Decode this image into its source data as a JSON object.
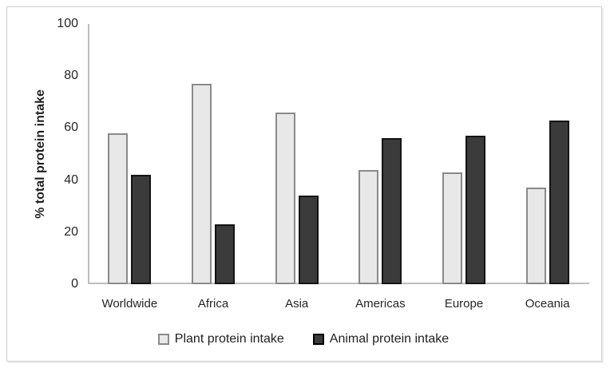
{
  "chart_data": {
    "type": "bar",
    "title": "",
    "categories": [
      "Worldwide",
      "Africa",
      "Asia",
      "Americas",
      "Europe",
      "Oceania"
    ],
    "series": [
      {
        "key": "plant",
        "name": "Plant protein intake",
        "values": [
          58,
          77,
          66,
          44,
          43,
          37
        ],
        "fill": "#e8e8e8",
        "border": "#8a8a8a"
      },
      {
        "key": "animal",
        "name": "Animal protein intake",
        "values": [
          42,
          23,
          34,
          56,
          57,
          63
        ],
        "fill": "#3b3b3b",
        "border": "#141414"
      }
    ],
    "xlabel": "",
    "ylabel": "% total protein intake",
    "ylim": [
      0,
      100
    ],
    "yticks": [
      0,
      20,
      40,
      60,
      80,
      100
    ],
    "grid": false,
    "legend_position": "bottom"
  },
  "colors": {
    "axis_line": "#bdbdbd",
    "frame_border": "#cfcfcf",
    "text": "#1f1f1f",
    "background": "#ffffff"
  }
}
